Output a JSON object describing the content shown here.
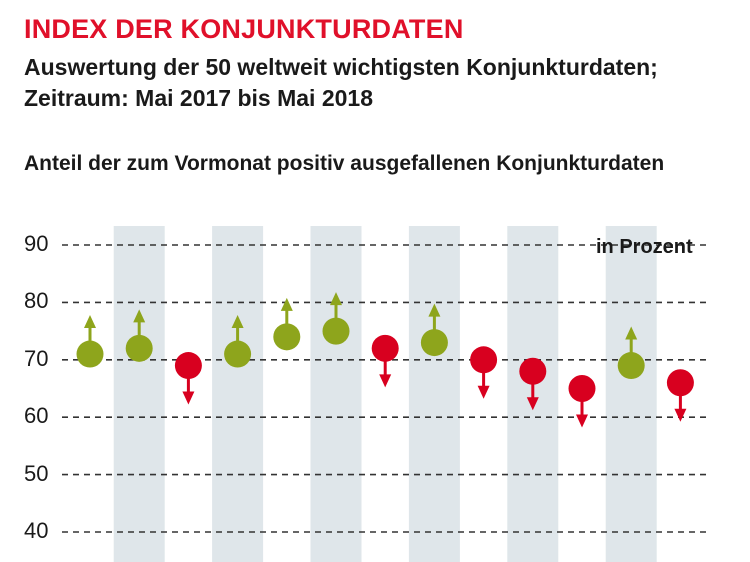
{
  "chart_data": {
    "type": "scatter",
    "title": "INDEX DER KONJUNKTURDATEN",
    "subtitle_lines": [
      "Auswertung der 50 weltweit wichtigsten Konjunkturdaten;",
      "Zeitraum: Mai 2017 bis Mai 2018"
    ],
    "description": "Anteil der zum Vormonat positiv ausgefallenen Konjunkturdaten",
    "unit_label": "in Prozent",
    "ylim": [
      40,
      90
    ],
    "yticks": [
      90,
      80,
      70,
      60,
      50,
      40
    ],
    "grid": "dashed-horizontal",
    "values": [
      71,
      72,
      69,
      71,
      74,
      75,
      72,
      73,
      70,
      68,
      65,
      69,
      66
    ],
    "directions": [
      "up",
      "up",
      "down",
      "up",
      "up",
      "up",
      "down",
      "up",
      "down",
      "down",
      "down",
      "up",
      "down"
    ],
    "colors": {
      "up": "#8ea51c",
      "down": "#d8001f",
      "band": "#dfe6ea",
      "title": "#e0102a"
    }
  }
}
